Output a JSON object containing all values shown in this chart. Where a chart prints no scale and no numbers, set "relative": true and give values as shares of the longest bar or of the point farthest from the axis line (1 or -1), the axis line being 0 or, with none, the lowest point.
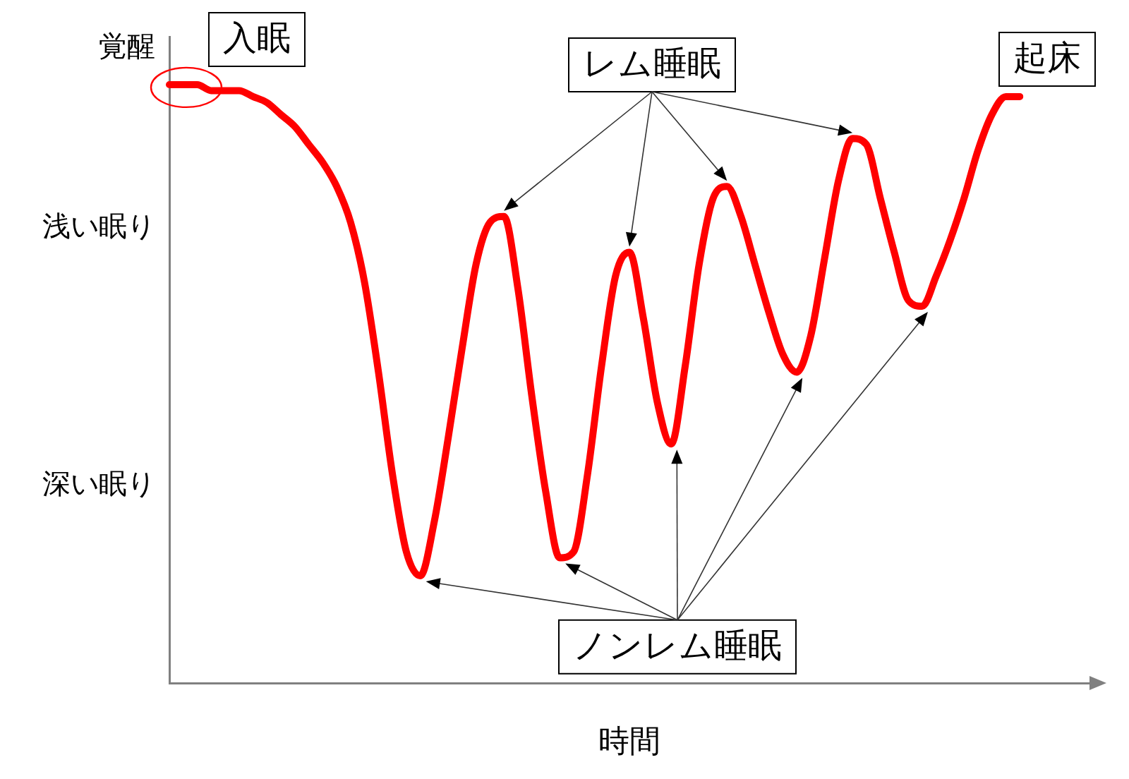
{
  "chart_data": {
    "type": "line",
    "xlabel": "時間",
    "relative": true,
    "categories": [
      null,
      null,
      null,
      null,
      null,
      null,
      null,
      null,
      null,
      null,
      null,
      null,
      null,
      null,
      null,
      null,
      null,
      null,
      null,
      null,
      null,
      null,
      null,
      null,
      null,
      null,
      null,
      null,
      null,
      null,
      null,
      null,
      null,
      null,
      null,
      null,
      null,
      null,
      null,
      null,
      null,
      null,
      null,
      null,
      null,
      null,
      null,
      null,
      null,
      null,
      null,
      null,
      null,
      null,
      null,
      null,
      null,
      null,
      null,
      null,
      null,
      null,
      null,
      null,
      null,
      null,
      null
    ],
    "series": [
      {
        "color": "#ff0000",
        "values": [
          1,
          1,
          1,
          0.99,
          0.99,
          0.99,
          0.98,
          0.97,
          0.95,
          0.93,
          0.9,
          0.87,
          0.83,
          0.77,
          0.67,
          0.52,
          0.35,
          0.22,
          0.18,
          0.27,
          0.41,
          0.56,
          0.7,
          0.77,
          0.78,
          0.66,
          0.48,
          0.32,
          0.21,
          0.22,
          0.35,
          0.53,
          0.68,
          0.72,
          0.61,
          0.47,
          0.4,
          0.53,
          0.7,
          0.81,
          0.83,
          0.78,
          0.7,
          0.62,
          0.55,
          0.52,
          0.58,
          0.71,
          0.84,
          0.91,
          0.9,
          0.81,
          0.72,
          0.64,
          0.63,
          0.68,
          0.74,
          0.81,
          0.89,
          0.95,
          0.98,
          0.98,
          null,
          null,
          null,
          null,
          null
        ]
      }
    ],
    "marker": "none",
    "line_style": "solid",
    "annotations": [
      "入眠",
      "レム睡眠",
      "起床",
      "ノンレム睡眠",
      "覚醒",
      "浅い眠り",
      "深い眠り"
    ]
  }
}
